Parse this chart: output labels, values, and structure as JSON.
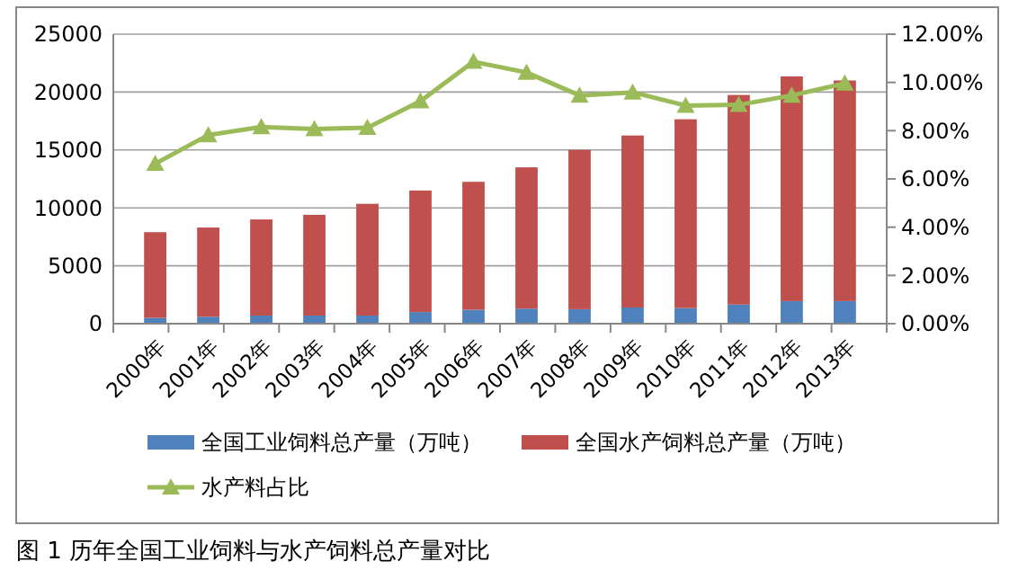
{
  "chart_data": {
    "type": "bar",
    "stacked": true,
    "categories": [
      "2000年",
      "2001年",
      "2002年",
      "2003年",
      "2004年",
      "2005年",
      "2006年",
      "2007年",
      "2008年",
      "2009年",
      "2010年",
      "2011年",
      "2012年",
      "2013年"
    ],
    "series": [
      {
        "name": "全国工业饲料总产量（万吨）",
        "color": "#4f81bd",
        "values": [
          500,
          600,
          700,
          700,
          700,
          1000,
          1200,
          1300,
          1250,
          1400,
          1350,
          1650,
          1950,
          1950
        ]
      },
      {
        "name": "全国水产饲料总产量（万吨）",
        "color": "#c0504d",
        "values": [
          7400,
          7700,
          8300,
          8700,
          9650,
          10500,
          11050,
          12200,
          13750,
          14850,
          16300,
          18100,
          19400,
          19050
        ]
      },
      {
        "name": "水产料占比",
        "type": "line",
        "axis": "y2",
        "color": "#9bbb59",
        "marker": "triangle",
        "values": [
          6.63,
          7.82,
          8.15,
          8.07,
          8.12,
          9.22,
          10.86,
          10.41,
          9.46,
          9.59,
          9.04,
          9.07,
          9.46,
          9.96
        ]
      }
    ],
    "ylim": [
      0,
      25000
    ],
    "yticks": [
      0,
      5000,
      10000,
      15000,
      20000,
      25000
    ],
    "y2lim": [
      0,
      12
    ],
    "y2ticks": [
      {
        "value": 0,
        "label": "0.00%"
      },
      {
        "value": 2,
        "label": "2.00%"
      },
      {
        "value": 4,
        "label": "4.00%"
      },
      {
        "value": 6,
        "label": "6.00%"
      },
      {
        "value": 8,
        "label": "8.00%"
      },
      {
        "value": 10,
        "label": "10.00%"
      },
      {
        "value": 12,
        "label": "12.00%"
      }
    ],
    "grid": "y",
    "legend": "bottom",
    "annotations": [
      "图 1 历年全国工业饲料与水产饲料总产量对比"
    ]
  }
}
